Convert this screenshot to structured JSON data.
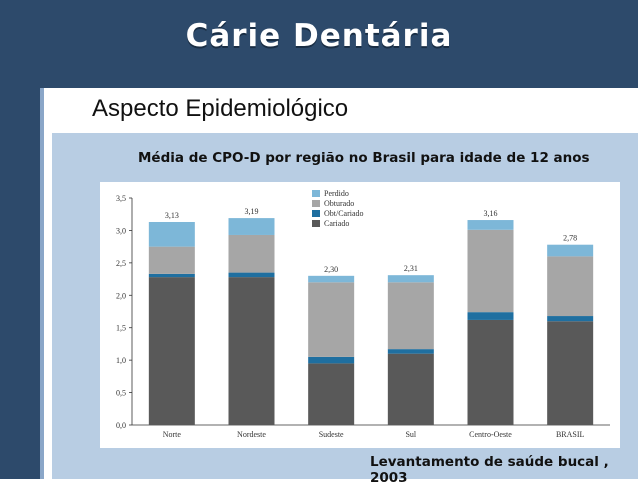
{
  "header": {
    "title": "Cárie Dentária"
  },
  "subtitle": "Aspecto Epidemiológico",
  "chart_title": "Média de CPO-D por região no Brasil para idade de 12 anos",
  "source": "Levantamento de saúde bucal , 2003",
  "colors": {
    "Perdido": "#7db7d8",
    "Obturado": "#a6a6a6",
    "Obt/Cariado": "#1f6fa0",
    "Cariado": "#595959"
  },
  "chart_data": {
    "type": "bar",
    "stacked": true,
    "categories": [
      "Norte",
      "Nordeste",
      "Sudeste",
      "Sul",
      "Centro-Oeste",
      "BRASIL"
    ],
    "series": [
      {
        "name": "Cariado",
        "values": [
          2.28,
          2.28,
          0.95,
          1.1,
          1.62,
          1.6
        ]
      },
      {
        "name": "Obt/Cariado",
        "values": [
          0.05,
          0.07,
          0.1,
          0.07,
          0.12,
          0.08
        ]
      },
      {
        "name": "Obturado",
        "values": [
          0.42,
          0.58,
          1.15,
          1.03,
          1.27,
          0.92
        ]
      },
      {
        "name": "Perdido",
        "values": [
          0.38,
          0.26,
          0.1,
          0.11,
          0.15,
          0.18
        ]
      }
    ],
    "totals": [
      "3,13",
      "3,19",
      "2,30",
      "2,31",
      "3,16",
      "2,78"
    ],
    "ylim": [
      0,
      3.5
    ],
    "yticks": [
      "0,0",
      "0,5",
      "1,0",
      "1,5",
      "2,0",
      "2,5",
      "3,0",
      "3,5"
    ],
    "legend": [
      "Perdido",
      "Obturado",
      "Obt/Cariado",
      "Cariado"
    ],
    "legend_position": "top-center",
    "grid": false
  }
}
